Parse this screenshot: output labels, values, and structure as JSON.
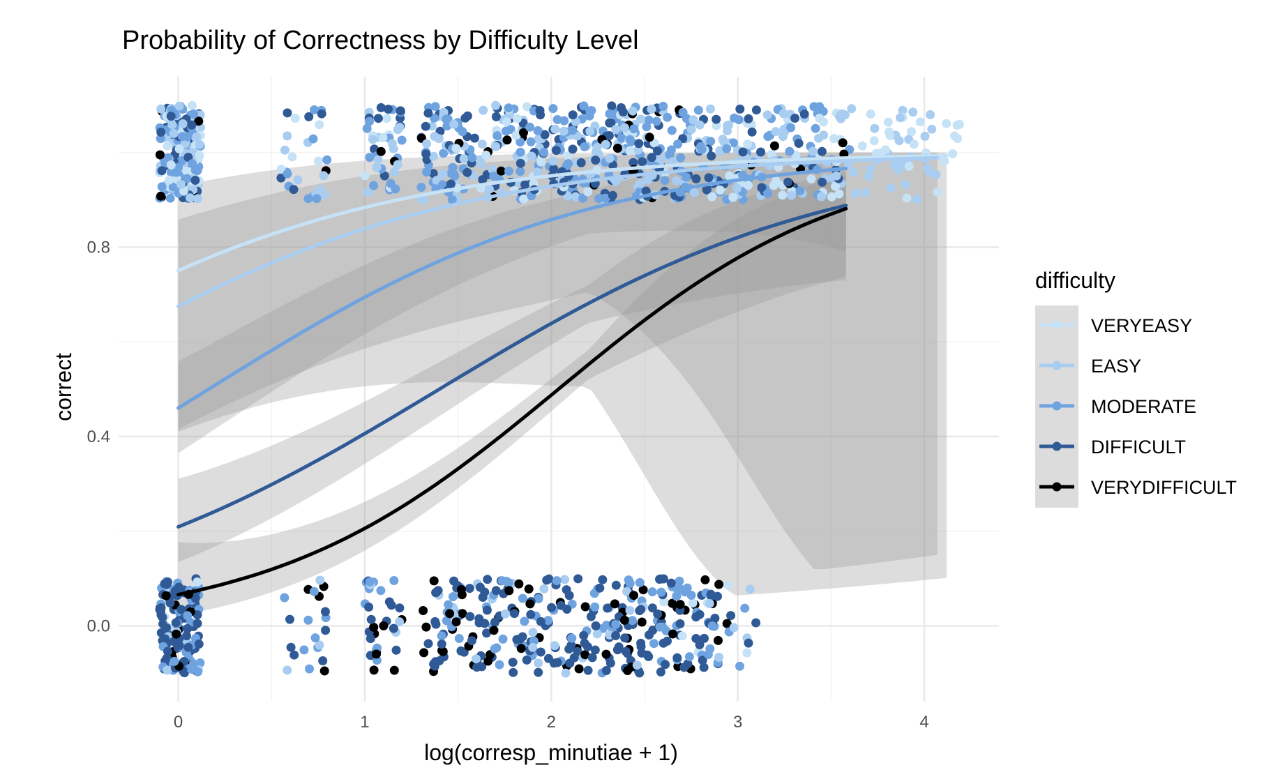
{
  "chart_data": {
    "type": "scatter",
    "title": "Probability of Correctness by Difficulty Level",
    "xlabel": "log(corresp_minutiae + 1)",
    "ylabel": "correct",
    "xlim": [
      -0.32,
      4.4
    ],
    "ylim": [
      -0.16,
      1.16
    ],
    "x_ticks": [
      0,
      1,
      2,
      3,
      4
    ],
    "y_ticks": [
      0.0,
      0.4,
      0.8
    ],
    "y_tick_labels": [
      "0.0",
      "0.4",
      "0.8"
    ],
    "x_minor_ticks": [
      0.5,
      1.5,
      2.5,
      3.5
    ],
    "y_minor_ticks": [
      0.2,
      0.6,
      1.0
    ],
    "grid": true,
    "jitter": {
      "width": 0.1,
      "height": 0.1
    },
    "legend": {
      "title": "difficulty",
      "position": "right",
      "entries": [
        "VERYEASY",
        "EASY",
        "MODERATE",
        "DIFFICULT",
        "VERYDIFFICULT"
      ]
    },
    "series": [
      {
        "name": "VERYEASY",
        "color": "#c6e2f7",
        "fit": {
          "b0": 1.1,
          "b1": 0.93,
          "xmax": 4.12,
          "se_at0": 0.14
        },
        "points": {
          "correct": [
            {
              "range": [
                -0.1,
                0.12
              ],
              "n": 35
            },
            {
              "range": [
                0.55,
                0.8
              ],
              "n": 5
            },
            {
              "range": [
                1.0,
                1.2
              ],
              "n": 6
            },
            {
              "range": [
                1.3,
                2.9
              ],
              "n": 40
            },
            {
              "range": [
                2.9,
                4.2
              ],
              "n": 60
            }
          ],
          "incorrect": [
            {
              "range": [
                -0.1,
                0.12
              ],
              "n": 4
            },
            {
              "range": [
                2.6,
                3.1
              ],
              "n": 8
            }
          ]
        }
      },
      {
        "name": "EASY",
        "color": "#a8cdf0",
        "fit": {
          "b0": 0.73,
          "b1": 0.92,
          "xmax": 4.07,
          "se_at0": 0.12
        },
        "points": {
          "correct": [
            {
              "range": [
                -0.1,
                0.12
              ],
              "n": 50
            },
            {
              "range": [
                0.55,
                0.8
              ],
              "n": 8
            },
            {
              "range": [
                1.0,
                1.2
              ],
              "n": 12
            },
            {
              "range": [
                1.3,
                2.9
              ],
              "n": 110
            },
            {
              "range": [
                2.9,
                4.1
              ],
              "n": 80
            }
          ],
          "incorrect": [
            {
              "range": [
                -0.1,
                0.12
              ],
              "n": 10
            },
            {
              "range": [
                0.55,
                0.8
              ],
              "n": 3
            },
            {
              "range": [
                1.0,
                1.2
              ],
              "n": 3
            },
            {
              "range": [
                1.3,
                2.9
              ],
              "n": 25
            },
            {
              "range": [
                2.9,
                3.1
              ],
              "n": 3
            }
          ]
        }
      },
      {
        "name": "MODERATE",
        "color": "#6fa3e0",
        "fit": {
          "b0": -0.16,
          "b1": 0.98,
          "xmax": 3.58,
          "se_at0": 0.05
        },
        "points": {
          "correct": [
            {
              "range": [
                -0.1,
                0.12
              ],
              "n": 60
            },
            {
              "range": [
                0.55,
                0.8
              ],
              "n": 10
            },
            {
              "range": [
                1.0,
                1.2
              ],
              "n": 15
            },
            {
              "range": [
                1.3,
                2.9
              ],
              "n": 140
            },
            {
              "range": [
                2.9,
                3.6
              ],
              "n": 40
            }
          ],
          "incorrect": [
            {
              "range": [
                -0.1,
                0.12
              ],
              "n": 40
            },
            {
              "range": [
                0.55,
                0.8
              ],
              "n": 8
            },
            {
              "range": [
                1.0,
                1.2
              ],
              "n": 10
            },
            {
              "range": [
                1.3,
                2.9
              ],
              "n": 80
            },
            {
              "range": [
                2.9,
                3.1
              ],
              "n": 3
            }
          ]
        }
      },
      {
        "name": "DIFFICULT",
        "color": "#2f5a96",
        "fit": {
          "b0": -1.33,
          "b1": 0.95,
          "xmax": 3.58,
          "se_at0": 0.045
        },
        "points": {
          "correct": [
            {
              "range": [
                -0.1,
                0.12
              ],
              "n": 30
            },
            {
              "range": [
                0.55,
                0.8
              ],
              "n": 5
            },
            {
              "range": [
                1.0,
                1.2
              ],
              "n": 10
            },
            {
              "range": [
                1.3,
                2.9
              ],
              "n": 120
            },
            {
              "range": [
                2.9,
                3.6
              ],
              "n": 20
            }
          ],
          "incorrect": [
            {
              "range": [
                -0.1,
                0.12
              ],
              "n": 70
            },
            {
              "range": [
                0.55,
                0.8
              ],
              "n": 6
            },
            {
              "range": [
                1.0,
                1.2
              ],
              "n": 12
            },
            {
              "range": [
                1.3,
                2.9
              ],
              "n": 160
            },
            {
              "range": [
                2.9,
                3.1
              ],
              "n": 3
            }
          ]
        }
      },
      {
        "name": "VERYDIFFICULT",
        "color": "#000000",
        "fit": {
          "b0": -2.65,
          "b1": 1.3,
          "xmax": 3.58,
          "se_at0": 0.035
        },
        "points": {
          "correct": [
            {
              "range": [
                -0.1,
                0.12
              ],
              "n": 6
            },
            {
              "range": [
                0.55,
                0.8
              ],
              "n": 1
            },
            {
              "range": [
                1.0,
                1.2
              ],
              "n": 2
            },
            {
              "range": [
                1.3,
                2.9
              ],
              "n": 20
            },
            {
              "range": [
                2.9,
                3.6
              ],
              "n": 6
            }
          ],
          "incorrect": [
            {
              "range": [
                -0.1,
                0.12
              ],
              "n": 15
            },
            {
              "range": [
                0.55,
                0.8
              ],
              "n": 4
            },
            {
              "range": [
                1.0,
                1.2
              ],
              "n": 8
            },
            {
              "range": [
                1.3,
                2.9
              ],
              "n": 60
            },
            {
              "range": [
                2.9,
                3.1
              ],
              "n": 1
            }
          ]
        }
      }
    ]
  }
}
